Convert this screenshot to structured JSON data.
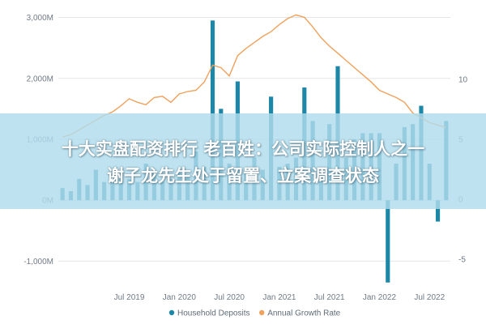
{
  "chart_data": {
    "type": "bar",
    "combo": "bar+line",
    "title": "",
    "xlabel": "",
    "ylabel": "",
    "x_tick_labels": [
      "Jul 2019",
      "Jan 2020",
      "Jul 2020",
      "Jan 2021",
      "Jul 2021",
      "Jan 2022",
      "Jul 2022"
    ],
    "y_left": {
      "ticks": [
        -1000,
        0,
        1000,
        2000,
        3000
      ],
      "tick_labels": [
        "-1,000M",
        "0M",
        "1,000M",
        "2,000M",
        "3,000M"
      ],
      "range": [
        -1300,
        3100
      ]
    },
    "y_right": {
      "ticks": [
        -5,
        0,
        5,
        10
      ],
      "tick_labels": [
        "-5",
        "0",
        "5",
        "10"
      ],
      "range": [
        -6.7,
        15.7
      ]
    },
    "grid": true,
    "legend": "bottom",
    "categories": [
      "2018-11",
      "2018-12",
      "2019-01",
      "2019-02",
      "2019-03",
      "2019-04",
      "2019-05",
      "2019-06",
      "2019-07",
      "2019-08",
      "2019-09",
      "2019-10",
      "2019-11",
      "2019-12",
      "2020-01",
      "2020-02",
      "2020-03",
      "2020-04",
      "2020-05",
      "2020-06",
      "2020-07",
      "2020-08",
      "2020-09",
      "2020-10",
      "2020-11",
      "2020-12",
      "2021-01",
      "2021-02",
      "2021-03",
      "2021-04",
      "2021-05",
      "2021-06",
      "2021-07",
      "2021-08",
      "2021-09",
      "2021-10",
      "2021-11",
      "2021-12",
      "2022-01",
      "2022-02",
      "2022-03",
      "2022-04",
      "2022-05",
      "2022-06",
      "2022-07",
      "2022-08",
      "2022-09"
    ],
    "series": [
      {
        "name": "Household Deposits",
        "type": "bar",
        "axis": "left",
        "color": "#1d87a8",
        "values": [
          200,
          150,
          350,
          250,
          500,
          300,
          400,
          450,
          350,
          300,
          600,
          450,
          300,
          350,
          500,
          400,
          800,
          550,
          2950,
          1500,
          600,
          1950,
          450,
          700,
          500,
          1700,
          550,
          600,
          700,
          1850,
          1300,
          450,
          1250,
          2200,
          700,
          1000,
          1100,
          1100,
          1100,
          -1350,
          600,
          1200,
          1250,
          1550,
          600,
          -350,
          1300
        ]
      },
      {
        "name": "Annual Growth Rate",
        "type": "line",
        "axis": "right",
        "color": "#f0a15c",
        "values": [
          5.2,
          5.4,
          5.8,
          6.2,
          6.6,
          7.0,
          7.3,
          7.8,
          8.4,
          8.1,
          7.9,
          8.5,
          8.6,
          8.1,
          8.8,
          9.0,
          9.1,
          9.8,
          11.2,
          11.0,
          10.3,
          12.0,
          12.6,
          13.1,
          13.6,
          14.0,
          14.6,
          15.1,
          15.4,
          15.2,
          14.4,
          13.5,
          12.8,
          12.2,
          11.6,
          11.0,
          10.4,
          9.8,
          9.1,
          8.8,
          8.5,
          8.1,
          7.2,
          6.8,
          6.4,
          6.2,
          6.0
        ]
      }
    ]
  },
  "overlay": {
    "line1": "十大实盘配资排行 老百姓：公司实际控制人之一",
    "line2": "谢子龙先生处于留置、立案调查状态"
  }
}
